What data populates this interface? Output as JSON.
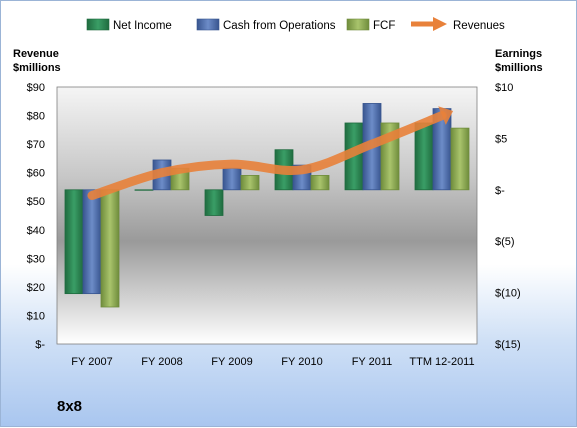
{
  "company": "8x8",
  "chart_data": {
    "type": "bar",
    "categories": [
      "FY 2007",
      "FY 2008",
      "FY 2009",
      "FY 2010",
      "FY 2011",
      "TTM 12-2011"
    ],
    "series": [
      {
        "name": "Net Income",
        "axis": "right",
        "kind": "bar",
        "color": "#2e8b57",
        "values": [
          -10.1,
          0,
          -2.5,
          3.9,
          6.5,
          6.5
        ]
      },
      {
        "name": "Cash from Operations",
        "axis": "right",
        "kind": "bar",
        "color": "#4f6fae",
        "values": [
          -10.1,
          2.9,
          2.1,
          2.4,
          8.4,
          7.9
        ]
      },
      {
        "name": "FCF",
        "axis": "right",
        "kind": "bar",
        "color": "#8fac56",
        "values": [
          -11.4,
          2.1,
          1.4,
          1.4,
          6.5,
          6.0
        ]
      },
      {
        "name": "Revenues",
        "axis": "left",
        "kind": "line",
        "color": "#e8813a",
        "values": [
          52,
          60,
          63,
          61,
          70,
          80
        ]
      }
    ],
    "left_axis": {
      "title_line1": "Revenue",
      "title_line2": "$millions",
      "min": 0,
      "max": 90,
      "step": 10,
      "tick_labels": [
        "$-",
        "$10",
        "$20",
        "$30",
        "$40",
        "$50",
        "$60",
        "$70",
        "$80",
        "$90"
      ]
    },
    "right_axis": {
      "title_line1": "Earnings",
      "title_line2": "$millions",
      "min": -15,
      "max": 10,
      "step": 5,
      "tick_labels": [
        "$(15)",
        "$(10)",
        "$(5)",
        "$-",
        "$5",
        "$10"
      ]
    },
    "legend_position": "top",
    "grid": false
  }
}
